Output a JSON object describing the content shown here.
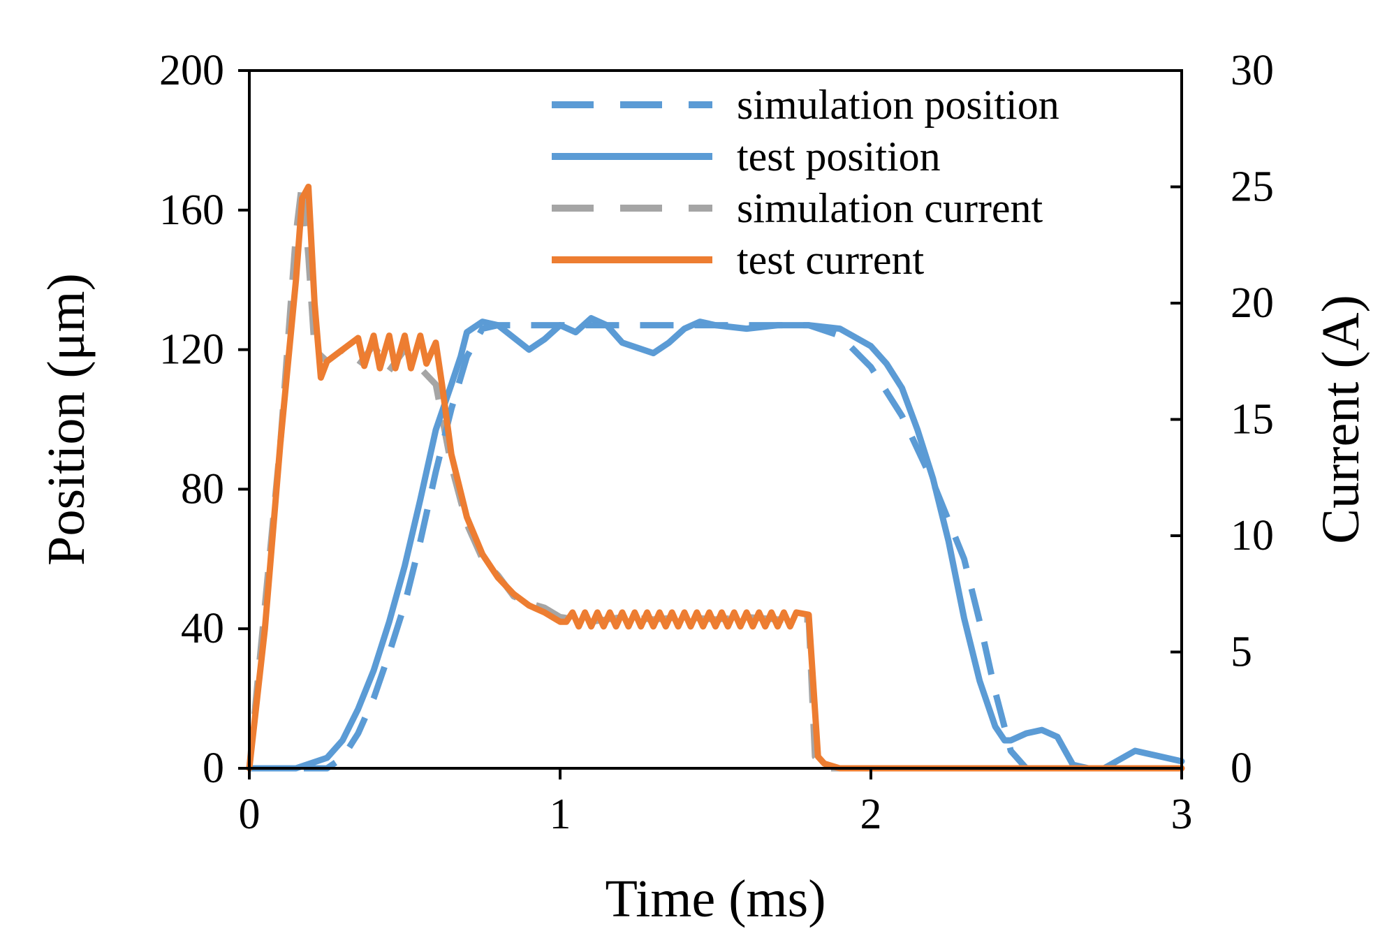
{
  "chart_data": {
    "type": "line",
    "title": "",
    "xlabel": "Time (ms)",
    "ylabel": "Position (μm)",
    "y2label": "Current (A)",
    "xlim": [
      0,
      3
    ],
    "ylim": [
      0,
      200
    ],
    "y2lim": [
      0,
      30
    ],
    "xticks": [
      "0",
      "1",
      "2",
      "3"
    ],
    "yticks": [
      "0",
      "40",
      "80",
      "120",
      "160",
      "200"
    ],
    "y2ticks": [
      "0",
      "5",
      "10",
      "15",
      "20",
      "25",
      "30"
    ],
    "grid": false,
    "legend_position": "top-right",
    "colors": {
      "position": "#5b9bd5",
      "sim_current": "#a5a5a5",
      "test_current": "#ed7d31"
    },
    "series": [
      {
        "name": "simulation position",
        "axis": "left",
        "style": "dashed",
        "color": "#5b9bd5",
        "x": [
          0,
          0.2,
          0.25,
          0.3,
          0.35,
          0.4,
          0.45,
          0.5,
          0.55,
          0.6,
          0.65,
          0.7,
          0.75,
          0.8,
          1.0,
          1.2,
          1.4,
          1.6,
          1.8,
          1.9,
          2.0,
          2.1,
          2.2,
          2.3,
          2.35,
          2.4,
          2.45,
          2.5,
          3.0
        ],
        "y": [
          0,
          0,
          0,
          3,
          10,
          20,
          33,
          47,
          65,
          85,
          103,
          118,
          126,
          127,
          127,
          127,
          127,
          127,
          127,
          124,
          115,
          101,
          82,
          60,
          42,
          22,
          5,
          0,
          0
        ]
      },
      {
        "name": "test position",
        "axis": "left",
        "style": "solid",
        "color": "#5b9bd5",
        "x": [
          0,
          0.15,
          0.25,
          0.3,
          0.35,
          0.4,
          0.45,
          0.5,
          0.55,
          0.6,
          0.65,
          0.68,
          0.7,
          0.75,
          0.8,
          0.9,
          0.95,
          1.0,
          1.05,
          1.1,
          1.15,
          1.2,
          1.3,
          1.35,
          1.4,
          1.45,
          1.5,
          1.6,
          1.7,
          1.8,
          1.9,
          2.0,
          2.05,
          2.1,
          2.15,
          2.2,
          2.25,
          2.3,
          2.35,
          2.4,
          2.43,
          2.45,
          2.5,
          2.55,
          2.6,
          2.65,
          2.7,
          2.75,
          2.85,
          3.0
        ],
        "y": [
          0,
          0,
          3,
          8,
          17,
          28,
          42,
          58,
          77,
          97,
          110,
          118,
          125,
          128,
          127,
          120,
          123,
          127,
          125,
          129,
          127,
          122,
          119,
          122,
          126,
          128,
          127,
          126,
          127,
          127,
          126,
          121,
          116,
          109,
          97,
          83,
          65,
          43,
          25,
          12,
          8,
          8,
          10,
          11,
          9,
          1,
          0,
          0,
          5,
          2
        ]
      },
      {
        "name": "simulation current",
        "axis": "right",
        "style": "dashed",
        "color": "#a5a5a5",
        "x": [
          0,
          0.05,
          0.1,
          0.15,
          0.17,
          0.19,
          0.21,
          0.25,
          0.3,
          0.35,
          0.4,
          0.45,
          0.5,
          0.55,
          0.6,
          0.65,
          0.7,
          0.75,
          0.8,
          0.85,
          0.9,
          0.95,
          1.0,
          1.1,
          1.2,
          1.3,
          1.4,
          1.5,
          1.6,
          1.7,
          1.8,
          1.82,
          1.85,
          2.0,
          3.0
        ],
        "y": [
          0,
          7,
          14,
          23,
          25.2,
          22,
          18,
          17.5,
          18,
          17.3,
          18.2,
          17.1,
          18,
          17.2,
          16.5,
          13,
          10.5,
          9,
          8.3,
          7.4,
          7.1,
          6.9,
          6.5,
          6.3,
          6.5,
          6.4,
          6.5,
          6.4,
          6.5,
          6.4,
          6.4,
          0.5,
          0,
          0,
          0
        ]
      },
      {
        "name": "test current",
        "axis": "right",
        "style": "solid",
        "color": "#ed7d31",
        "x": [
          0,
          0.05,
          0.1,
          0.15,
          0.17,
          0.19,
          0.21,
          0.23,
          0.25,
          0.3,
          0.35,
          0.37,
          0.4,
          0.42,
          0.45,
          0.47,
          0.5,
          0.52,
          0.55,
          0.57,
          0.6,
          0.62,
          0.65,
          0.7,
          0.75,
          0.8,
          0.85,
          0.9,
          0.95,
          1.0,
          1.02,
          1.04,
          1.06,
          1.08,
          1.1,
          1.12,
          1.14,
          1.16,
          1.18,
          1.2,
          1.22,
          1.24,
          1.26,
          1.28,
          1.3,
          1.32,
          1.34,
          1.36,
          1.38,
          1.4,
          1.42,
          1.44,
          1.46,
          1.48,
          1.5,
          1.52,
          1.54,
          1.56,
          1.58,
          1.6,
          1.62,
          1.64,
          1.66,
          1.68,
          1.7,
          1.72,
          1.74,
          1.76,
          1.8,
          1.83,
          1.85,
          1.9,
          2.0,
          3.0
        ],
        "y": [
          0,
          6,
          14,
          21,
          24.5,
          25,
          20,
          16.8,
          17.5,
          18,
          18.5,
          17.3,
          18.6,
          17.2,
          18.6,
          17.2,
          18.6,
          17.2,
          18.6,
          17.4,
          18.3,
          16.5,
          13.5,
          10.8,
          9.2,
          8.2,
          7.5,
          7,
          6.7,
          6.3,
          6.3,
          6.7,
          6.1,
          6.7,
          6.1,
          6.7,
          6.1,
          6.7,
          6.1,
          6.7,
          6.1,
          6.7,
          6.1,
          6.7,
          6.1,
          6.7,
          6.1,
          6.7,
          6.1,
          6.7,
          6.1,
          6.7,
          6.1,
          6.7,
          6.1,
          6.7,
          6.1,
          6.7,
          6.1,
          6.7,
          6.1,
          6.7,
          6.1,
          6.7,
          6.1,
          6.7,
          6.1,
          6.7,
          6.6,
          0.5,
          0.2,
          0,
          0,
          0
        ]
      }
    ]
  }
}
